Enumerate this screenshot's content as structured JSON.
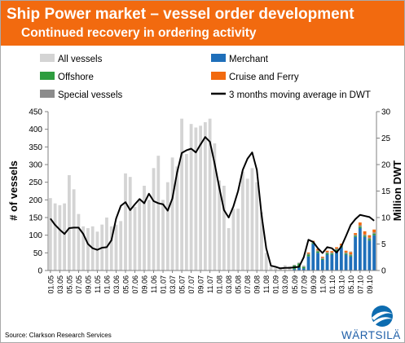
{
  "header": {
    "title": "Ship Power market – vessel order development",
    "subtitle": "Continued recovery in ordering activity"
  },
  "source": "Source: Clarkson Research Services",
  "logo": {
    "text": "WÄRTSILÄ"
  },
  "colors": {
    "banner": "#f26a0f",
    "all_vessels": "#d4d4d4",
    "merchant": "#1f6fba",
    "offshore": "#2e9d3f",
    "cruise_ferry": "#f26a0f",
    "special": "#8c8c8c",
    "moving_avg": "#000000"
  },
  "chart_data": {
    "type": "bar",
    "ylabel": "# of vessels",
    "y2label": "Million DWT",
    "ylim": [
      0,
      450
    ],
    "y2lim": [
      0,
      30
    ],
    "yticks": [
      0,
      50,
      100,
      150,
      200,
      250,
      300,
      350,
      400,
      450
    ],
    "y2ticks": [
      0,
      5,
      10,
      15,
      20,
      25,
      30
    ],
    "grid": false,
    "legend_position": "top",
    "categories": [
      "01.05",
      "02.05",
      "03.05",
      "04.05",
      "05.05",
      "06.05",
      "07.05",
      "08.05",
      "09.05",
      "10.05",
      "11.05",
      "12.05",
      "01.06",
      "02.06",
      "03.06",
      "04.06",
      "05.06",
      "06.06",
      "07.06",
      "08.06",
      "09.06",
      "10.06",
      "11.06",
      "12.06",
      "01.07",
      "02.07",
      "03.07",
      "04.07",
      "05.07",
      "06.07",
      "07.07",
      "08.07",
      "09.07",
      "10.07",
      "11.07",
      "12.07",
      "01.08",
      "02.08",
      "03.08",
      "04.08",
      "05.08",
      "06.08",
      "07.08",
      "08.08",
      "09.08",
      "10.08",
      "11.08",
      "12.08",
      "01.09",
      "02.09",
      "03.09",
      "04.09",
      "05.09",
      "06.09",
      "07.09",
      "08.09",
      "09.09",
      "10.09",
      "11.09",
      "12.09",
      "01.10",
      "02.10",
      "03.10",
      "04.10",
      "05.10",
      "06.10",
      "07.10",
      "08.10",
      "09.10",
      "10.10"
    ],
    "xtick_labels": [
      "01.05",
      "03.05",
      "05.05",
      "07.05",
      "09.05",
      "11.05",
      "01.06",
      "03.06",
      "05.06",
      "07.06",
      "09.06",
      "11.06",
      "01.07",
      "03.07",
      "05.07",
      "07.07",
      "09.07",
      "11.07",
      "01.08",
      "03.08",
      "05.08",
      "07.08",
      "09.08",
      "11.08",
      "01.09",
      "03.09",
      "05.09",
      "07.09",
      "09.09",
      "11.09",
      "01.10",
      "03.10",
      "05.10",
      "07.10",
      "09.10"
    ],
    "series": [
      {
        "name": "All vessels",
        "type": "bar",
        "values": [
          205,
          190,
          185,
          190,
          270,
          230,
          160,
          125,
          120,
          125,
          110,
          130,
          150,
          125,
          130,
          140,
          275,
          265,
          180,
          200,
          240,
          200,
          290,
          325,
          200,
          250,
          320,
          295,
          430,
          330,
          415,
          405,
          410,
          420,
          430,
          360,
          255,
          240,
          120,
          175,
          175,
          280,
          260,
          290,
          250,
          165,
          50,
          10,
          10,
          10,
          15,
          12,
          14,
          12,
          15,
          20,
          15,
          35,
          25,
          30,
          25,
          25,
          30,
          25,
          55,
          75,
          95,
          100,
          85,
          80
        ]
      },
      {
        "name": "Merchant",
        "type": "bar",
        "values": [
          0,
          0,
          0,
          0,
          0,
          0,
          0,
          0,
          0,
          0,
          0,
          0,
          0,
          0,
          0,
          0,
          0,
          0,
          0,
          0,
          0,
          0,
          0,
          0,
          0,
          0,
          0,
          0,
          0,
          0,
          0,
          0,
          0,
          0,
          0,
          0,
          0,
          0,
          0,
          0,
          0,
          0,
          0,
          0,
          0,
          0,
          0,
          0,
          0,
          0,
          0,
          0,
          4,
          8,
          6,
          40,
          75,
          50,
          30,
          45,
          45,
          55,
          65,
          45,
          40,
          95,
          120,
          95,
          85,
          100
        ]
      },
      {
        "name": "Offshore",
        "type": "bar",
        "values": [
          0,
          0,
          0,
          0,
          0,
          0,
          0,
          0,
          0,
          0,
          0,
          0,
          0,
          0,
          0,
          0,
          0,
          0,
          0,
          0,
          0,
          0,
          0,
          0,
          0,
          0,
          0,
          0,
          0,
          0,
          0,
          0,
          0,
          0,
          0,
          0,
          0,
          0,
          0,
          0,
          0,
          0,
          0,
          0,
          0,
          0,
          0,
          0,
          0,
          0,
          0,
          0,
          10,
          12,
          4,
          5,
          3,
          4,
          3,
          4,
          3,
          4,
          3,
          3,
          3,
          3,
          4,
          3,
          4,
          4
        ]
      },
      {
        "name": "Cruise and Ferry",
        "type": "bar",
        "values": [
          0,
          0,
          0,
          0,
          0,
          0,
          0,
          0,
          0,
          0,
          0,
          0,
          0,
          0,
          0,
          0,
          0,
          0,
          0,
          0,
          0,
          0,
          0,
          0,
          0,
          0,
          0,
          0,
          0,
          0,
          0,
          0,
          0,
          0,
          0,
          0,
          0,
          0,
          0,
          0,
          0,
          0,
          0,
          0,
          0,
          0,
          0,
          0,
          0,
          0,
          0,
          0,
          0,
          0,
          0,
          3,
          3,
          4,
          3,
          4,
          4,
          4,
          5,
          5,
          6,
          5,
          8,
          9,
          7,
          8
        ]
      },
      {
        "name": "Special vessels",
        "type": "bar",
        "values": [
          0,
          0,
          0,
          0,
          0,
          0,
          0,
          0,
          0,
          0,
          0,
          0,
          0,
          0,
          0,
          0,
          0,
          0,
          0,
          0,
          0,
          0,
          0,
          0,
          0,
          0,
          0,
          0,
          0,
          0,
          0,
          0,
          0,
          0,
          0,
          0,
          0,
          0,
          0,
          0,
          0,
          0,
          0,
          0,
          0,
          0,
          0,
          0,
          0,
          0,
          0,
          0,
          2,
          2,
          2,
          3,
          3,
          3,
          3,
          3,
          3,
          3,
          3,
          3,
          3,
          3,
          4,
          4,
          4,
          4
        ]
      },
      {
        "name": "3 months moving average in DWT",
        "type": "line",
        "axis": "right",
        "values": [
          9.8,
          8.6,
          7.7,
          6.9,
          8.0,
          8.1,
          8.1,
          6.9,
          5.0,
          4.2,
          3.9,
          4.3,
          4.4,
          5.7,
          9.8,
          12.2,
          12.9,
          11.4,
          12.5,
          13.5,
          12.7,
          14.5,
          13.1,
          12.7,
          12.5,
          11.3,
          13.6,
          18.5,
          22.2,
          22.7,
          23.0,
          22.3,
          23.8,
          25.2,
          24.3,
          20.2,
          15.6,
          11.4,
          10.0,
          12.1,
          15.0,
          19.0,
          21.1,
          22.3,
          19.0,
          10.5,
          4.2,
          0.9,
          0.7,
          0.4,
          0.5,
          0.5,
          0.6,
          0.7,
          2.5,
          5.8,
          5.4,
          4.2,
          3.3,
          4.4,
          4.2,
          3.4,
          4.5,
          6.5,
          8.6,
          9.7,
          10.5,
          10.3,
          10.1,
          9.4
        ]
      }
    ]
  }
}
